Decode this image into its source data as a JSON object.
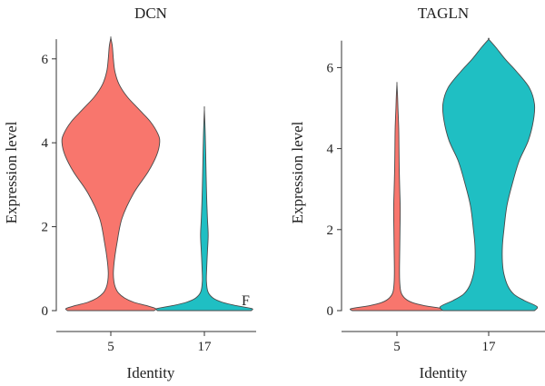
{
  "chart_data": [
    {
      "type": "violin",
      "title": "DCN",
      "xlabel": "Identity",
      "ylabel": "Expression level",
      "categories": [
        "5",
        "17"
      ],
      "ylim": [
        0,
        6.6
      ],
      "yticks": [
        0,
        2,
        4,
        6
      ],
      "grid": false,
      "annotation": "F",
      "violins": [
        {
          "category": "5",
          "color": "#F8766D",
          "max": 6.5,
          "profile": [
            [
              0,
              0.85
            ],
            [
              0.05,
              0.88
            ],
            [
              0.12,
              0.7
            ],
            [
              0.2,
              0.45
            ],
            [
              0.3,
              0.27
            ],
            [
              0.42,
              0.15
            ],
            [
              0.55,
              0.09
            ],
            [
              0.7,
              0.06
            ],
            [
              0.9,
              0.05
            ],
            [
              1.2,
              0.07
            ],
            [
              1.6,
              0.12
            ],
            [
              2.2,
              0.22
            ],
            [
              2.8,
              0.45
            ],
            [
              3.3,
              0.73
            ],
            [
              3.7,
              0.9
            ],
            [
              4.0,
              0.96
            ],
            [
              4.2,
              0.93
            ],
            [
              4.5,
              0.78
            ],
            [
              4.8,
              0.55
            ],
            [
              5.1,
              0.32
            ],
            [
              5.4,
              0.16
            ],
            [
              5.7,
              0.08
            ],
            [
              6.0,
              0.05
            ],
            [
              6.3,
              0.03
            ],
            [
              6.5,
              0.0
            ]
          ]
        },
        {
          "category": "17",
          "color": "#1FBFC3",
          "max": 4.8,
          "profile": [
            [
              0,
              0.92
            ],
            [
              0.05,
              0.93
            ],
            [
              0.12,
              0.62
            ],
            [
              0.2,
              0.35
            ],
            [
              0.3,
              0.17
            ],
            [
              0.45,
              0.07
            ],
            [
              0.7,
              0.04
            ],
            [
              1.0,
              0.045
            ],
            [
              1.4,
              0.06
            ],
            [
              1.8,
              0.075
            ],
            [
              2.2,
              0.06
            ],
            [
              2.7,
              0.045
            ],
            [
              3.2,
              0.035
            ],
            [
              3.8,
              0.025
            ],
            [
              4.3,
              0.015
            ],
            [
              4.8,
              0.0
            ]
          ]
        }
      ]
    },
    {
      "type": "violin",
      "title": "TAGLN",
      "xlabel": "Identity",
      "ylabel": "Expression level",
      "categories": [
        "5",
        "17"
      ],
      "ylim": [
        0,
        6.8
      ],
      "yticks": [
        0,
        2,
        4,
        6
      ],
      "grid": false,
      "violins": [
        {
          "category": "5",
          "color": "#F8766D",
          "max": 5.6,
          "profile": [
            [
              0,
              0.88
            ],
            [
              0.05,
              0.9
            ],
            [
              0.12,
              0.55
            ],
            [
              0.2,
              0.3
            ],
            [
              0.3,
              0.16
            ],
            [
              0.45,
              0.08
            ],
            [
              0.7,
              0.055
            ],
            [
              1.0,
              0.05
            ],
            [
              1.5,
              0.055
            ],
            [
              2.0,
              0.06
            ],
            [
              2.5,
              0.065
            ],
            [
              3.0,
              0.055
            ],
            [
              3.5,
              0.045
            ],
            [
              4.0,
              0.04
            ],
            [
              4.5,
              0.035
            ],
            [
              5.0,
              0.02
            ],
            [
              5.3,
              0.012
            ],
            [
              5.6,
              0.0
            ]
          ]
        },
        {
          "category": "17",
          "color": "#1FBFC3",
          "max": 6.7,
          "profile": [
            [
              0,
              0.9
            ],
            [
              0.1,
              0.95
            ],
            [
              0.25,
              0.7
            ],
            [
              0.4,
              0.5
            ],
            [
              0.6,
              0.38
            ],
            [
              0.9,
              0.3
            ],
            [
              1.2,
              0.27
            ],
            [
              1.6,
              0.27
            ],
            [
              2.0,
              0.3
            ],
            [
              2.6,
              0.36
            ],
            [
              3.2,
              0.48
            ],
            [
              3.7,
              0.6
            ],
            [
              4.2,
              0.78
            ],
            [
              4.7,
              0.88
            ],
            [
              5.1,
              0.9
            ],
            [
              5.5,
              0.8
            ],
            [
              5.9,
              0.55
            ],
            [
              6.2,
              0.33
            ],
            [
              6.5,
              0.14
            ],
            [
              6.7,
              0.0
            ]
          ]
        }
      ]
    }
  ]
}
